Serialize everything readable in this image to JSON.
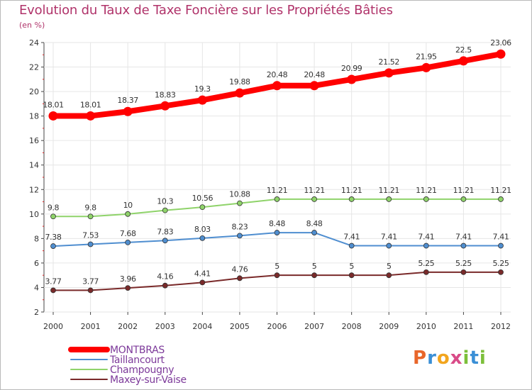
{
  "title": "Evolution du Taux de Taxe Foncière sur les Propriétés Bâties",
  "subtitle": "(en %)",
  "logo": {
    "letters": [
      "P",
      "r",
      "o",
      "x",
      "i",
      "t",
      "i"
    ],
    "colors": [
      "#e8662a",
      "#3a8fd6",
      "#f2a51e",
      "#d94b88",
      "#7cbf3a",
      "#3a8fd6",
      "#7cbf3a"
    ]
  },
  "chart_data": {
    "type": "line",
    "title": "Evolution du Taux de Taxe Foncière sur les Propriétés Bâties",
    "ylabel": "(en %)",
    "xlabel": "",
    "categories": [
      "2000",
      "2001",
      "2002",
      "2003",
      "2004",
      "2005",
      "2006",
      "2007",
      "2008",
      "2009",
      "2010",
      "2011",
      "2012"
    ],
    "ylim": [
      2,
      24
    ],
    "yticks": [
      "2",
      "4",
      "6",
      "8",
      "10",
      "12",
      "14",
      "16",
      "18",
      "20",
      "22",
      "24"
    ],
    "grid": true,
    "legend": "bottom-left",
    "series": [
      {
        "name": "MONTBRAS",
        "color": "#ff0000",
        "values": [
          18.01,
          18.01,
          18.37,
          18.83,
          19.3,
          19.88,
          20.48,
          20.48,
          20.99,
          21.52,
          21.95,
          22.5,
          23.06
        ],
        "labels": [
          "18.01",
          "18.01",
          "18.37",
          "18.83",
          "19.3",
          "19.88",
          "20.48",
          "20.48",
          "20.99",
          "21.52",
          "21.95",
          "22.5",
          "23.06"
        ]
      },
      {
        "name": "Taillancourt",
        "color": "#4f8ed0",
        "values": [
          7.38,
          7.53,
          7.68,
          7.83,
          8.03,
          8.23,
          8.48,
          8.48,
          7.41,
          7.41,
          7.41,
          7.41,
          7.41
        ],
        "labels": [
          "7.38",
          "7.53",
          "7.68",
          "7.83",
          "8.03",
          "8.23",
          "8.48",
          "8.48",
          "7.41",
          "7.41",
          "7.41",
          "7.41",
          "7.41"
        ]
      },
      {
        "name": "Champougny",
        "color": "#8fd36a",
        "values": [
          9.8,
          9.8,
          10,
          10.3,
          10.56,
          10.88,
          11.21,
          11.21,
          11.21,
          11.21,
          11.21,
          11.21,
          11.21
        ],
        "labels": [
          "9.8",
          "9.8",
          "10",
          "10.3",
          "10.56",
          "10.88",
          "11.21",
          "11.21",
          "11.21",
          "11.21",
          "11.21",
          "11.21",
          "11.21"
        ]
      },
      {
        "name": "Maxey-sur-Vaise",
        "color": "#7a2a2a",
        "values": [
          3.77,
          3.77,
          3.96,
          4.16,
          4.41,
          4.76,
          5,
          5,
          5,
          5,
          5.25,
          5.25,
          5.25
        ],
        "labels": [
          "3.77",
          "3.77",
          "3.96",
          "4.16",
          "4.41",
          "4.76",
          "5",
          "5",
          "5",
          "5",
          "5.25",
          "5.25",
          "5.25"
        ]
      }
    ]
  }
}
